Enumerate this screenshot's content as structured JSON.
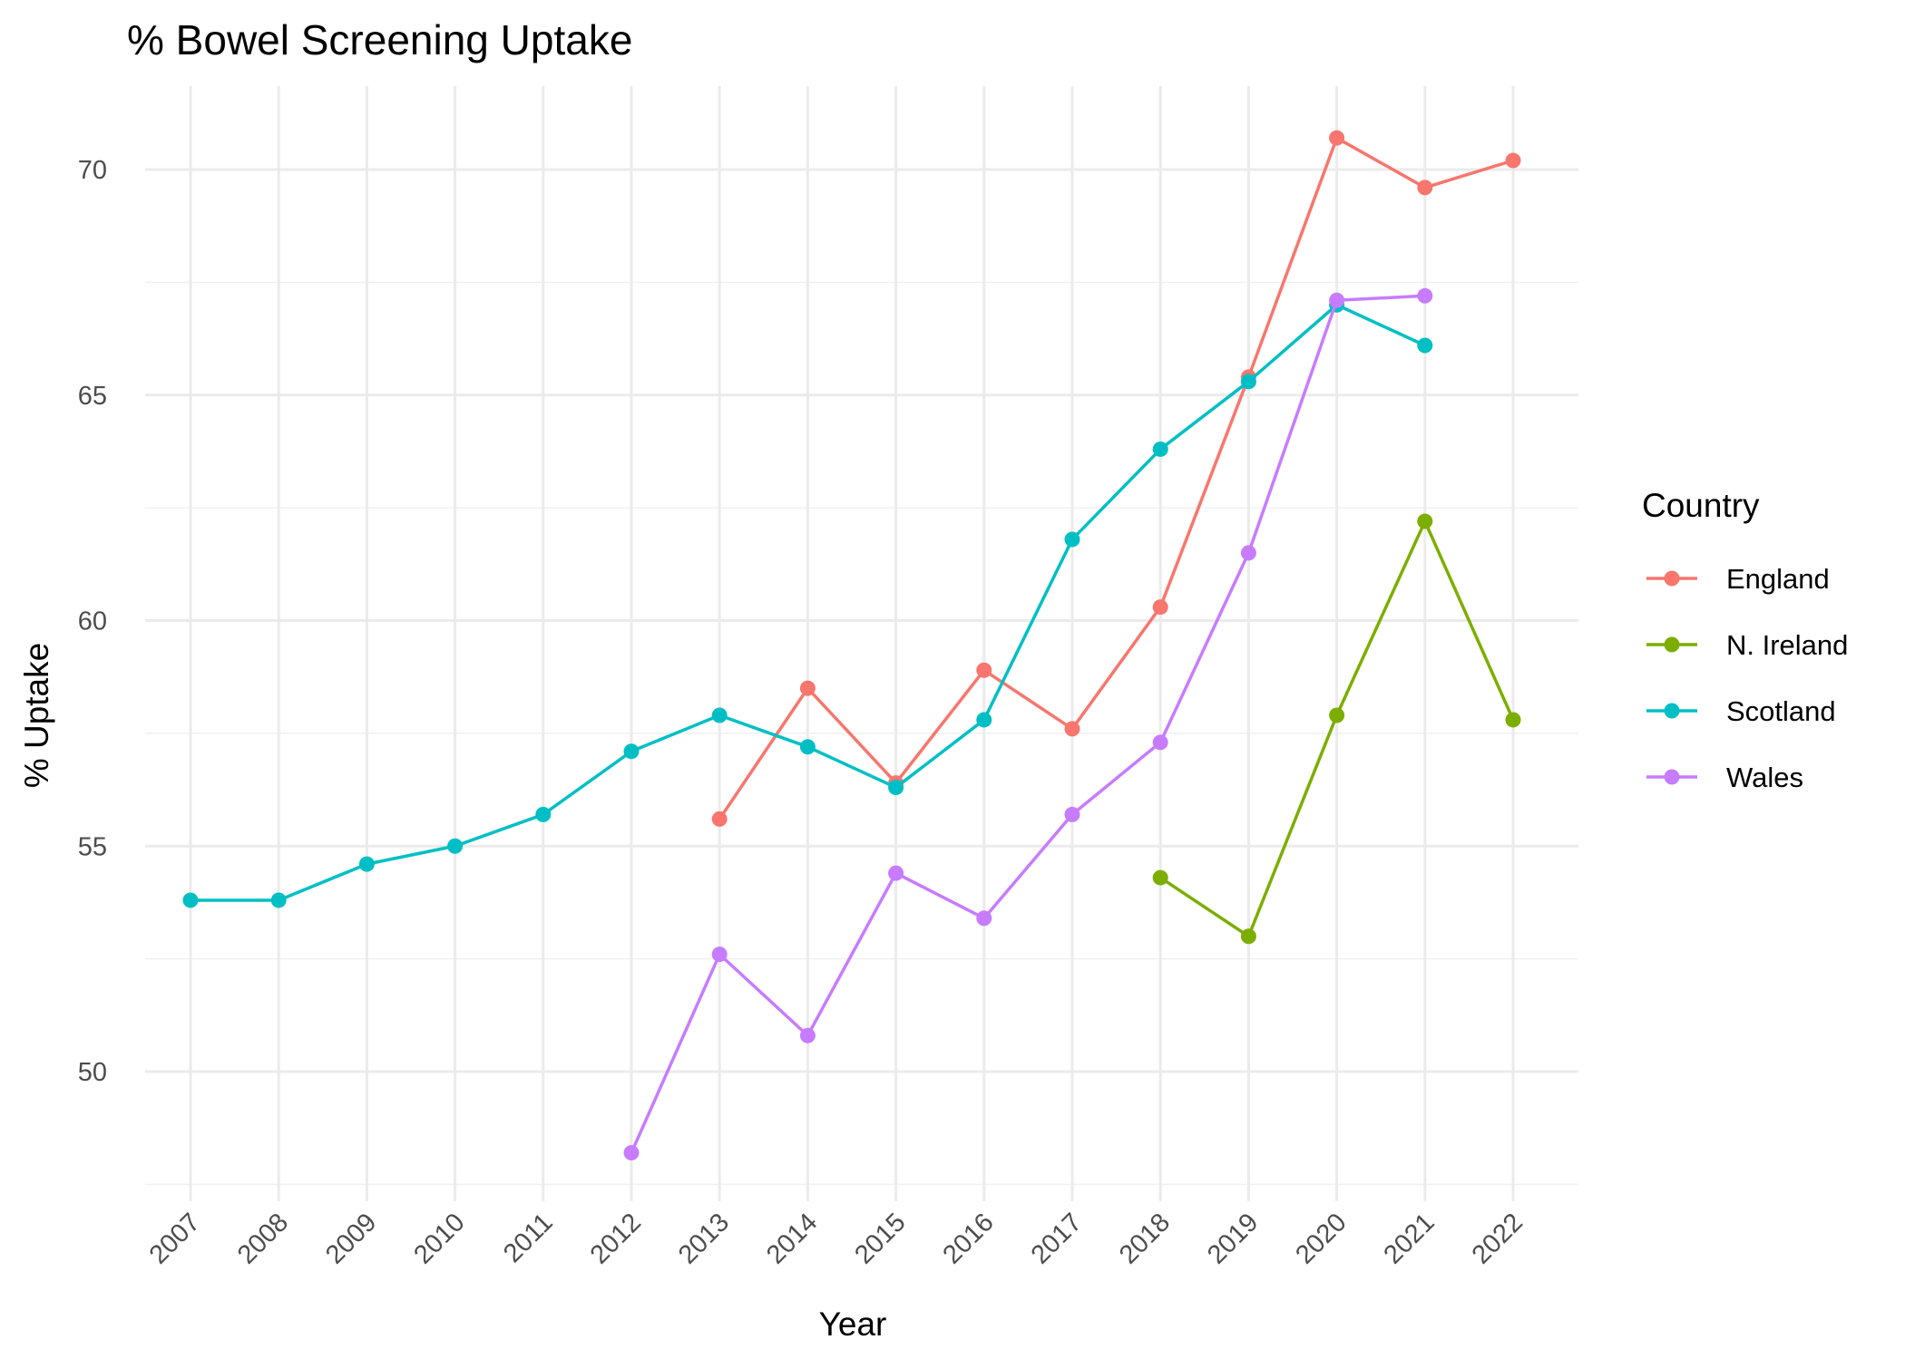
{
  "chart_data": {
    "type": "line",
    "title": "% Bowel Screening Uptake",
    "xlabel": "Year",
    "ylabel": "% Uptake",
    "x": [
      2007,
      2008,
      2009,
      2010,
      2011,
      2012,
      2013,
      2014,
      2015,
      2016,
      2017,
      2018,
      2019,
      2020,
      2021,
      2022
    ],
    "x_tick_labels": [
      "2007",
      "2008",
      "2009",
      "2010",
      "2011",
      "2012",
      "2013",
      "2014",
      "2015",
      "2016",
      "2017",
      "2018",
      "2019",
      "2020",
      "2021",
      "2022"
    ],
    "ylim": [
      47.2,
      71.9
    ],
    "y_ticks": [
      50,
      55,
      60,
      65,
      70
    ],
    "y_tick_labels": [
      "50",
      "55",
      "60",
      "65",
      "70"
    ],
    "grid": true,
    "legend": {
      "title": "Country",
      "placement": "right"
    },
    "series": [
      {
        "name": "England",
        "color": "#F8766D",
        "x": [
          2013,
          2014,
          2015,
          2016,
          2017,
          2018,
          2019,
          2020,
          2021,
          2022
        ],
        "values": [
          55.6,
          58.5,
          56.4,
          58.9,
          57.6,
          60.3,
          65.4,
          70.7,
          69.6,
          70.2
        ]
      },
      {
        "name": "N. Ireland",
        "color": "#7CAE00",
        "x": [
          2018,
          2019,
          2020,
          2021,
          2022
        ],
        "values": [
          54.3,
          53.0,
          57.9,
          62.2,
          57.8
        ]
      },
      {
        "name": "Scotland",
        "color": "#00BFC4",
        "x": [
          2007,
          2008,
          2009,
          2010,
          2011,
          2012,
          2013,
          2014,
          2015,
          2016,
          2017,
          2018,
          2019,
          2020,
          2021
        ],
        "values": [
          53.8,
          53.8,
          54.6,
          55.0,
          55.7,
          57.1,
          57.9,
          57.2,
          56.3,
          57.8,
          61.8,
          63.8,
          65.3,
          67.0,
          66.1
        ]
      },
      {
        "name": "Wales",
        "color": "#C77CFF",
        "x": [
          2012,
          2013,
          2014,
          2015,
          2016,
          2017,
          2018,
          2019,
          2020,
          2021
        ],
        "values": [
          48.2,
          52.6,
          50.8,
          54.4,
          53.4,
          55.7,
          57.3,
          61.5,
          67.1,
          67.2
        ]
      }
    ]
  }
}
